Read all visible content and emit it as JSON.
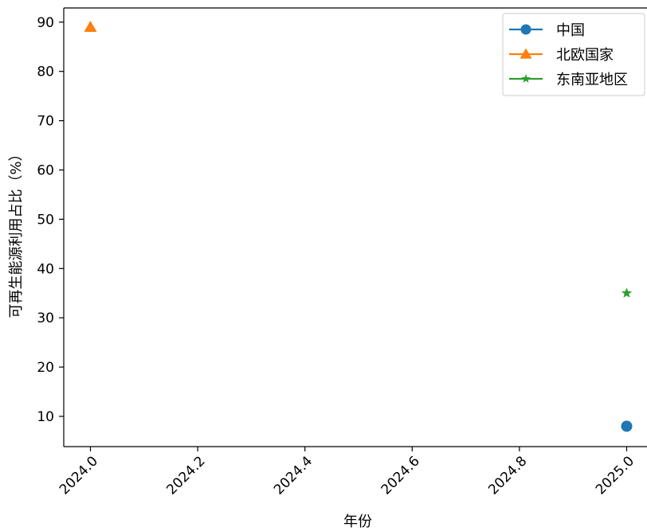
{
  "chart_data": {
    "type": "scatter",
    "title": "",
    "xlabel": "年份",
    "ylabel": "可再生能源利用占比（%）",
    "xlim": [
      1909.95,
      2025.05
    ],
    "ylim": [
      3.95,
      92.2
    ],
    "x_ticks": [
      "2024.0",
      "2024.2",
      "2024.4",
      "2024.6",
      "2024.8",
      "2025.0"
    ],
    "y_ticks": [
      "10",
      "20",
      "30",
      "40",
      "50",
      "60",
      "70",
      "80",
      "90"
    ],
    "legend_position": "upper-right",
    "series": [
      {
        "name": "中国",
        "marker": "circle",
        "color": "#1f77b4",
        "points": [
          {
            "x": 2025.0,
            "y": 8
          }
        ]
      },
      {
        "name": "北欧国家",
        "marker": "triangle",
        "color": "#ff7f0e",
        "points": [
          {
            "x": 2024.0,
            "y": 89
          }
        ]
      },
      {
        "name": "东南亚地区",
        "marker": "star",
        "color": "#2ca02c",
        "points": [
          {
            "x": 2025.0,
            "y": 35
          }
        ]
      }
    ]
  }
}
